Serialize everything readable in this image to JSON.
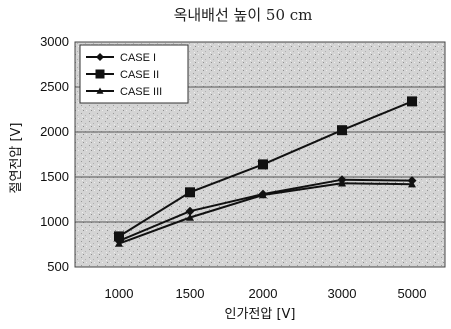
{
  "chart_data": {
    "type": "line",
    "title": "옥내배선 높이 50 cm",
    "xlabel": "인가전압 [V]",
    "ylabel": "절연전압 [V]",
    "categories": [
      "1000",
      "1500",
      "2000",
      "3000",
      "5000"
    ],
    "ylim": [
      500,
      3000
    ],
    "yticks": [
      "500",
      "1000",
      "1500",
      "2000",
      "2500",
      "3000"
    ],
    "grid": true,
    "legend_position": "top-left",
    "series": [
      {
        "name": "CASE I",
        "marker": "diamond",
        "values": [
          790,
          1120,
          1310,
          1470,
          1460
        ]
      },
      {
        "name": "CASE II",
        "marker": "square",
        "values": [
          840,
          1330,
          1640,
          2020,
          2340
        ]
      },
      {
        "name": "CASE III",
        "marker": "triangle",
        "values": [
          760,
          1050,
          1300,
          1430,
          1420
        ]
      }
    ]
  }
}
